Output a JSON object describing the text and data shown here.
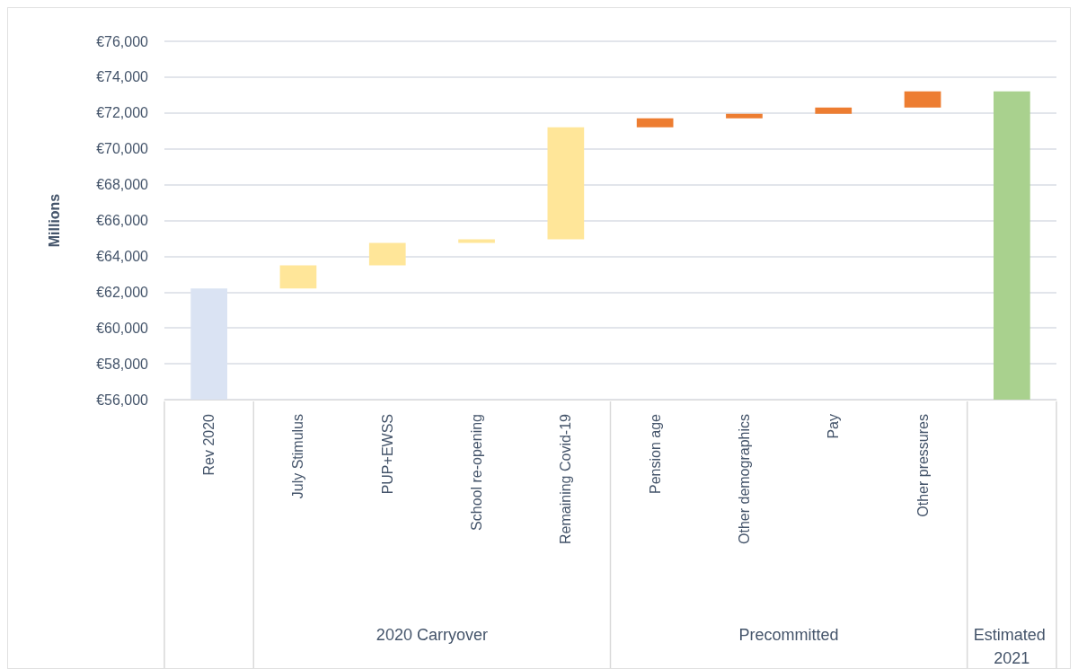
{
  "chart_data": {
    "type": "bar",
    "ylabel": "Millions",
    "categories": [
      "Rev 2020",
      "July Stimulus",
      "PUP+EWSS",
      "School re-opening",
      "Remaining Covid-19",
      "Pension age",
      "Other demographics",
      "Pay",
      "Other pressures",
      null
    ],
    "values": [
      62200,
      1300,
      1250,
      200,
      6250,
      500,
      250,
      350,
      900,
      73200
    ],
    "base": [
      null,
      62200,
      63500,
      64750,
      64950,
      71200,
      71700,
      71950,
      72300,
      null
    ],
    "colors": [
      "#dae3f3",
      "#ffe699",
      "#ffe699",
      "#ffe699",
      "#ffe699",
      "#ed7d31",
      "#ed7d31",
      "#ed7d31",
      "#ed7d31",
      "#a9d18e"
    ],
    "ylim": [
      56000,
      76000
    ],
    "yticks": [
      {
        "value": 56000,
        "label": "€56,000"
      },
      {
        "value": 58000,
        "label": "€58,000"
      },
      {
        "value": 60000,
        "label": "€60,000"
      },
      {
        "value": 62000,
        "label": "€62,000"
      },
      {
        "value": 64000,
        "label": "€64,000"
      },
      {
        "value": 66000,
        "label": "€66,000"
      },
      {
        "value": 68000,
        "label": "€68,000"
      },
      {
        "value": 70000,
        "label": "€70,000"
      },
      {
        "value": 72000,
        "label": "€72,000"
      },
      {
        "value": 74000,
        "label": "€74,000"
      },
      {
        "value": 76000,
        "label": "€76,000"
      }
    ],
    "grid": "y",
    "annotations": [
      "2020 Carryover",
      "Precommitted",
      "Estimated 2021"
    ]
  }
}
